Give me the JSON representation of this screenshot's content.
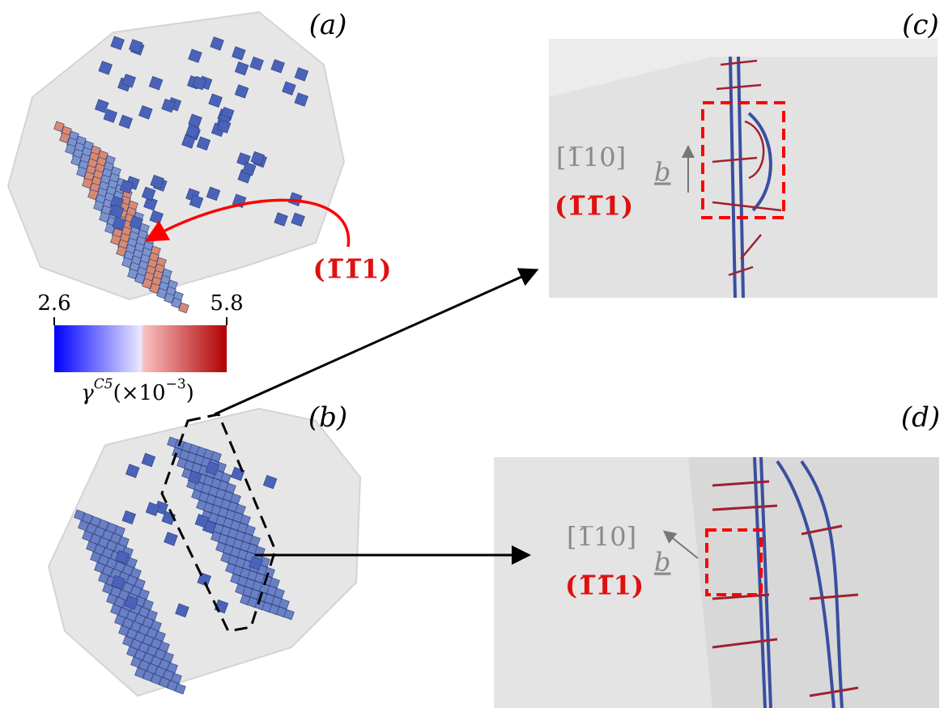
{
  "panels": {
    "a": "(a)",
    "b": "(b)",
    "c": "(c)",
    "d": "(d)"
  },
  "colorbar": {
    "min": 2.6,
    "max": 5.8,
    "label": {
      "symbol": "γ",
      "superscript": "C5",
      "unit_open": "(×10",
      "exponent": "−3",
      "unit_close": ")"
    }
  },
  "annotations": {
    "plane_a": "(1̅1̅1)",
    "direction_c": "[1̅10]",
    "plane_c": "(1̅1̅1)",
    "burgers_c": "b",
    "direction_d": "[1̅10]",
    "plane_d": "(1̅1̅1)",
    "burgers_d": "b"
  }
}
